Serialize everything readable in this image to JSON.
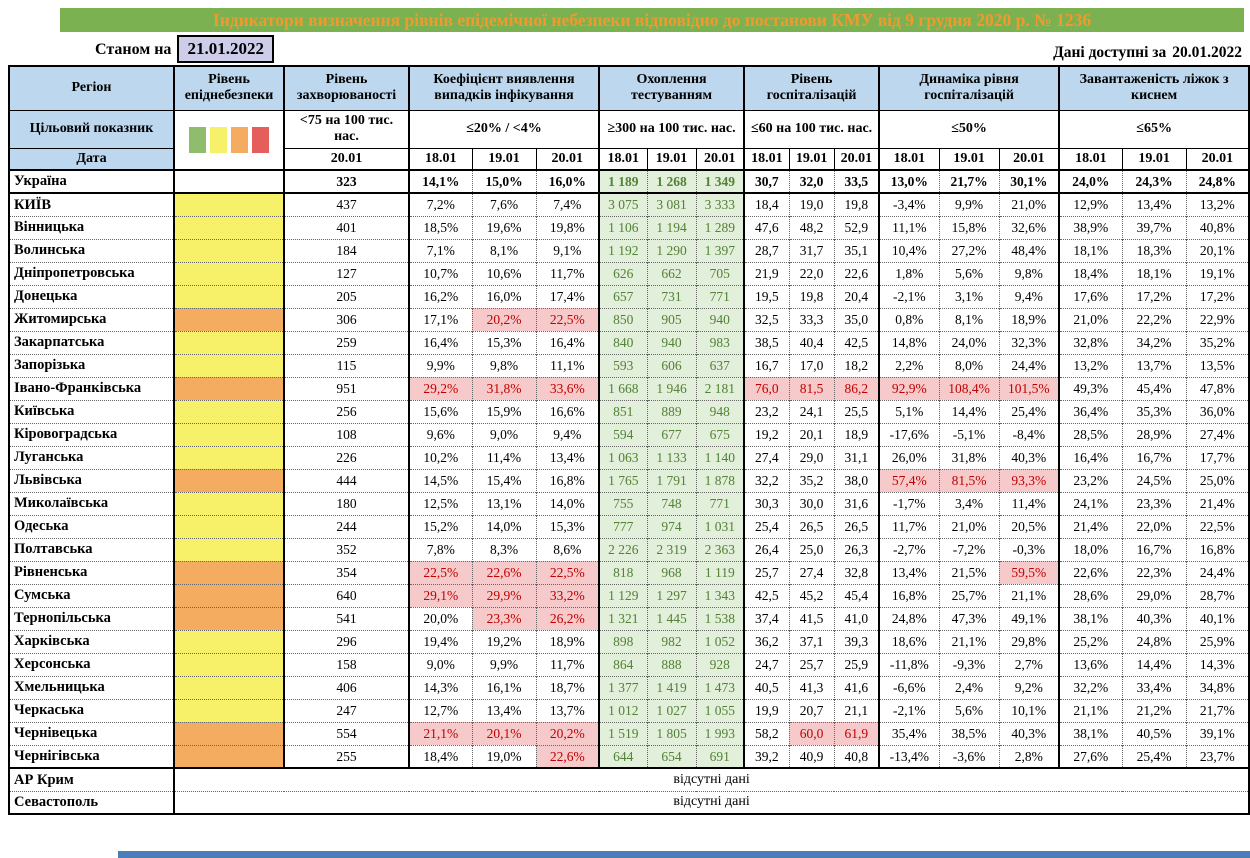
{
  "page": {
    "title": "Індикатори визначення рівнів епідемічної небезпеки відповідно до постанови КМУ від 9 грудня 2020 р. № 1236",
    "as_of_label": "Станом на",
    "as_of_date": "21.01.2022",
    "available_label": "Дані доступні за",
    "available_date": "20.01.2022"
  },
  "colors": {
    "title_bg": "#7cb152",
    "title_text": "#f09a2e",
    "header_bg": "#bdd7ee",
    "as_of_bg": "#cdcde9",
    "danger_yellow": "#f6f169",
    "danger_orange": "#f4ad60",
    "testing_bg": "#e2efda",
    "testing_text": "#538135",
    "alert_bg": "#f6caca",
    "alert_text": "#c00000",
    "bottom_strip": "#4a7ebb",
    "legend": [
      "#8fbc6d",
      "#f6f169",
      "#f4ad60",
      "#e45f5b"
    ]
  },
  "header": {
    "region": "Регіон",
    "danger": "Рівень епіднебезпеки",
    "incidence": "Рівень захворюваності",
    "detection": "Коефіцієнт виявлення випадків інфікування",
    "testing": "Охоплення тестуванням",
    "hospitalization": "Рівень госпіталізацій",
    "dynamics": "Динаміка рівня госпіталізацій",
    "beds": "Завантаженість ліжок з киснем",
    "target_label": "Цільовий показник",
    "date_label": "Дата",
    "targets": {
      "incidence": "<75 на 100 тис. нас.",
      "detection": "≤20% / <4%",
      "testing": "≥300 на 100 тис. нас.",
      "hospitalization": "≤60 на 100 тис. нас.",
      "dynamics": "≤50%",
      "beds": "≤65%"
    },
    "incidence_date": "20.01",
    "dates": [
      "18.01",
      "19.01",
      "20.01"
    ]
  },
  "no_data_text": "відсутні дані",
  "rows": [
    {
      "name": "Україна",
      "danger": null,
      "bold": true,
      "incidence": "323",
      "detection": [
        "14,1%",
        "15,0%",
        "16,0%"
      ],
      "testing": [
        "1 189",
        "1 268",
        "1 349"
      ],
      "hosp": [
        "30,7",
        "32,0",
        "33,5"
      ],
      "dynamics": [
        "13,0%",
        "21,7%",
        "30,1%"
      ],
      "beds": [
        "24,0%",
        "24,3%",
        "24,8%"
      ]
    },
    {
      "name": "КИЇВ",
      "danger": "yellow",
      "incidence": "437",
      "detection": [
        "7,2%",
        "7,6%",
        "7,4%"
      ],
      "testing": [
        "3 075",
        "3 081",
        "3 333"
      ],
      "hosp": [
        "18,4",
        "19,0",
        "19,8"
      ],
      "dynamics": [
        "-3,4%",
        "9,9%",
        "21,0%"
      ],
      "beds": [
        "12,9%",
        "13,4%",
        "13,2%"
      ]
    },
    {
      "name": "Вінницька",
      "danger": "yellow",
      "incidence": "401",
      "detection": [
        "18,5%",
        "19,6%",
        "19,8%"
      ],
      "testing": [
        "1 106",
        "1 194",
        "1 289"
      ],
      "hosp": [
        "47,6",
        "48,2",
        "52,9"
      ],
      "dynamics": [
        "11,1%",
        "15,8%",
        "32,6%"
      ],
      "beds": [
        "38,9%",
        "39,7%",
        "40,8%"
      ]
    },
    {
      "name": "Волинська",
      "danger": "yellow",
      "incidence": "184",
      "detection": [
        "7,1%",
        "8,1%",
        "9,1%"
      ],
      "testing": [
        "1 192",
        "1 290",
        "1 397"
      ],
      "hosp": [
        "28,7",
        "31,7",
        "35,1"
      ],
      "dynamics": [
        "10,4%",
        "27,2%",
        "48,4%"
      ],
      "beds": [
        "18,1%",
        "18,3%",
        "20,1%"
      ]
    },
    {
      "name": "Дніпропетровська",
      "danger": "yellow",
      "incidence": "127",
      "detection": [
        "10,7%",
        "10,6%",
        "11,7%"
      ],
      "testing": [
        "626",
        "662",
        "705"
      ],
      "hosp": [
        "21,9",
        "22,0",
        "22,6"
      ],
      "dynamics": [
        "1,8%",
        "5,6%",
        "9,8%"
      ],
      "beds": [
        "18,4%",
        "18,1%",
        "19,1%"
      ]
    },
    {
      "name": "Донецька",
      "danger": "yellow",
      "incidence": "205",
      "detection": [
        "16,2%",
        "16,0%",
        "17,4%"
      ],
      "testing": [
        "657",
        "731",
        "771"
      ],
      "hosp": [
        "19,5",
        "19,8",
        "20,4"
      ],
      "dynamics": [
        "-2,1%",
        "3,1%",
        "9,4%"
      ],
      "beds": [
        "17,6%",
        "17,2%",
        "17,2%"
      ]
    },
    {
      "name": "Житомирська",
      "danger": "orange",
      "incidence": "306",
      "detection": [
        "17,1%",
        "20,2%",
        "22,5%"
      ],
      "detection_red": [
        1,
        2
      ],
      "testing": [
        "850",
        "905",
        "940"
      ],
      "hosp": [
        "32,5",
        "33,3",
        "35,0"
      ],
      "dynamics": [
        "0,8%",
        "8,1%",
        "18,9%"
      ],
      "beds": [
        "21,0%",
        "22,2%",
        "22,9%"
      ]
    },
    {
      "name": "Закарпатська",
      "danger": "yellow",
      "incidence": "259",
      "detection": [
        "16,4%",
        "15,3%",
        "16,4%"
      ],
      "testing": [
        "840",
        "940",
        "983"
      ],
      "hosp": [
        "38,5",
        "40,4",
        "42,5"
      ],
      "dynamics": [
        "14,8%",
        "24,0%",
        "32,3%"
      ],
      "beds": [
        "32,8%",
        "34,2%",
        "35,2%"
      ]
    },
    {
      "name": "Запорізька",
      "danger": "yellow",
      "incidence": "115",
      "detection": [
        "9,9%",
        "9,8%",
        "11,1%"
      ],
      "testing": [
        "593",
        "606",
        "637"
      ],
      "hosp": [
        "16,7",
        "17,0",
        "18,2"
      ],
      "dynamics": [
        "2,2%",
        "8,0%",
        "24,4%"
      ],
      "beds": [
        "13,2%",
        "13,7%",
        "13,5%"
      ]
    },
    {
      "name": "Івано-Франківська",
      "danger": "orange",
      "incidence": "951",
      "detection": [
        "29,2%",
        "31,8%",
        "33,6%"
      ],
      "detection_red": [
        0,
        1,
        2
      ],
      "testing": [
        "1 668",
        "1 946",
        "2 181"
      ],
      "hosp": [
        "76,0",
        "81,5",
        "86,2"
      ],
      "hosp_red": [
        0,
        1,
        2
      ],
      "dynamics": [
        "92,9%",
        "108,4%",
        "101,5%"
      ],
      "dynamics_red": [
        0,
        1,
        2
      ],
      "beds": [
        "49,3%",
        "45,4%",
        "47,8%"
      ]
    },
    {
      "name": "Київська",
      "danger": "yellow",
      "incidence": "256",
      "detection": [
        "15,6%",
        "15,9%",
        "16,6%"
      ],
      "testing": [
        "851",
        "889",
        "948"
      ],
      "hosp": [
        "23,2",
        "24,1",
        "25,5"
      ],
      "dynamics": [
        "5,1%",
        "14,4%",
        "25,4%"
      ],
      "beds": [
        "36,4%",
        "35,3%",
        "36,0%"
      ]
    },
    {
      "name": "Кіровоградська",
      "danger": "yellow",
      "incidence": "108",
      "detection": [
        "9,6%",
        "9,0%",
        "9,4%"
      ],
      "testing": [
        "594",
        "677",
        "675"
      ],
      "hosp": [
        "19,2",
        "20,1",
        "18,9"
      ],
      "dynamics": [
        "-17,6%",
        "-5,1%",
        "-8,4%"
      ],
      "beds": [
        "28,5%",
        "28,9%",
        "27,4%"
      ]
    },
    {
      "name": "Луганська",
      "danger": "yellow",
      "incidence": "226",
      "detection": [
        "10,2%",
        "11,4%",
        "13,4%"
      ],
      "testing": [
        "1 063",
        "1 133",
        "1 140"
      ],
      "hosp": [
        "27,4",
        "29,0",
        "31,1"
      ],
      "dynamics": [
        "26,0%",
        "31,8%",
        "40,3%"
      ],
      "beds": [
        "16,4%",
        "16,7%",
        "17,7%"
      ]
    },
    {
      "name": "Львівська",
      "danger": "orange",
      "incidence": "444",
      "detection": [
        "14,5%",
        "15,4%",
        "16,8%"
      ],
      "testing": [
        "1 765",
        "1 791",
        "1 878"
      ],
      "hosp": [
        "32,2",
        "35,2",
        "38,0"
      ],
      "dynamics": [
        "57,4%",
        "81,5%",
        "93,3%"
      ],
      "dynamics_red": [
        0,
        1,
        2
      ],
      "beds": [
        "23,2%",
        "24,5%",
        "25,0%"
      ]
    },
    {
      "name": "Миколаївська",
      "danger": "yellow",
      "incidence": "180",
      "detection": [
        "12,5%",
        "13,1%",
        "14,0%"
      ],
      "testing": [
        "755",
        "748",
        "771"
      ],
      "hosp": [
        "30,3",
        "30,0",
        "31,6"
      ],
      "dynamics": [
        "-1,7%",
        "3,4%",
        "11,4%"
      ],
      "beds": [
        "24,1%",
        "23,3%",
        "21,4%"
      ]
    },
    {
      "name": "Одеська",
      "danger": "yellow",
      "incidence": "244",
      "detection": [
        "15,2%",
        "14,0%",
        "15,3%"
      ],
      "testing": [
        "777",
        "974",
        "1 031"
      ],
      "hosp": [
        "25,4",
        "26,5",
        "26,5"
      ],
      "dynamics": [
        "11,7%",
        "21,0%",
        "20,5%"
      ],
      "beds": [
        "21,4%",
        "22,0%",
        "22,5%"
      ]
    },
    {
      "name": "Полтавська",
      "danger": "yellow",
      "incidence": "352",
      "detection": [
        "7,8%",
        "8,3%",
        "8,6%"
      ],
      "testing": [
        "2 226",
        "2 319",
        "2 363"
      ],
      "hosp": [
        "26,4",
        "25,0",
        "26,3"
      ],
      "dynamics": [
        "-2,7%",
        "-7,2%",
        "-0,3%"
      ],
      "beds": [
        "18,0%",
        "16,7%",
        "16,8%"
      ]
    },
    {
      "name": "Рівненська",
      "danger": "orange",
      "incidence": "354",
      "detection": [
        "22,5%",
        "22,6%",
        "22,5%"
      ],
      "detection_red": [
        0,
        1,
        2
      ],
      "testing": [
        "818",
        "968",
        "1 119"
      ],
      "hosp": [
        "25,7",
        "27,4",
        "32,8"
      ],
      "dynamics": [
        "13,4%",
        "21,5%",
        "59,5%"
      ],
      "dynamics_red": [
        2
      ],
      "beds": [
        "22,6%",
        "22,3%",
        "24,4%"
      ]
    },
    {
      "name": "Сумська",
      "danger": "orange",
      "incidence": "640",
      "detection": [
        "29,1%",
        "29,9%",
        "33,2%"
      ],
      "detection_red": [
        0,
        1,
        2
      ],
      "testing": [
        "1 129",
        "1 297",
        "1 343"
      ],
      "hosp": [
        "42,5",
        "45,2",
        "45,4"
      ],
      "dynamics": [
        "16,8%",
        "25,7%",
        "21,1%"
      ],
      "beds": [
        "28,6%",
        "29,0%",
        "28,7%"
      ]
    },
    {
      "name": "Тернопільська",
      "danger": "orange",
      "incidence": "541",
      "detection": [
        "20,0%",
        "23,3%",
        "26,2%"
      ],
      "detection_red": [
        1,
        2
      ],
      "testing": [
        "1 321",
        "1 445",
        "1 538"
      ],
      "hosp": [
        "37,4",
        "41,5",
        "41,0"
      ],
      "dynamics": [
        "24,8%",
        "47,3%",
        "49,1%"
      ],
      "beds": [
        "38,1%",
        "40,3%",
        "40,1%"
      ]
    },
    {
      "name": "Харківська",
      "danger": "yellow",
      "incidence": "296",
      "detection": [
        "19,4%",
        "19,2%",
        "18,9%"
      ],
      "testing": [
        "898",
        "982",
        "1 052"
      ],
      "hosp": [
        "36,2",
        "37,1",
        "39,3"
      ],
      "dynamics": [
        "18,6%",
        "21,1%",
        "29,8%"
      ],
      "beds": [
        "25,2%",
        "24,8%",
        "25,9%"
      ]
    },
    {
      "name": "Херсонська",
      "danger": "yellow",
      "incidence": "158",
      "detection": [
        "9,0%",
        "9,9%",
        "11,7%"
      ],
      "testing": [
        "864",
        "888",
        "928"
      ],
      "hosp": [
        "24,7",
        "25,7",
        "25,9"
      ],
      "dynamics": [
        "-11,8%",
        "-9,3%",
        "2,7%"
      ],
      "beds": [
        "13,6%",
        "14,4%",
        "14,3%"
      ]
    },
    {
      "name": "Хмельницька",
      "danger": "yellow",
      "incidence": "406",
      "detection": [
        "14,3%",
        "16,1%",
        "18,7%"
      ],
      "testing": [
        "1 377",
        "1 419",
        "1 473"
      ],
      "hosp": [
        "40,5",
        "41,3",
        "41,6"
      ],
      "dynamics": [
        "-6,6%",
        "2,4%",
        "9,2%"
      ],
      "beds": [
        "32,2%",
        "33,4%",
        "34,8%"
      ]
    },
    {
      "name": "Черкаська",
      "danger": "yellow",
      "incidence": "247",
      "detection": [
        "12,7%",
        "13,4%",
        "13,7%"
      ],
      "testing": [
        "1 012",
        "1 027",
        "1 055"
      ],
      "hosp": [
        "19,9",
        "20,7",
        "21,1"
      ],
      "dynamics": [
        "-2,1%",
        "5,6%",
        "10,1%"
      ],
      "beds": [
        "21,1%",
        "21,2%",
        "21,7%"
      ]
    },
    {
      "name": "Чернівецька",
      "danger": "orange",
      "incidence": "554",
      "detection": [
        "21,1%",
        "20,1%",
        "20,2%"
      ],
      "detection_red": [
        0,
        1,
        2
      ],
      "testing": [
        "1 519",
        "1 805",
        "1 993"
      ],
      "hosp": [
        "58,2",
        "60,0",
        "61,9"
      ],
      "hosp_red": [
        1,
        2
      ],
      "dynamics": [
        "35,4%",
        "38,5%",
        "40,3%"
      ],
      "beds": [
        "38,1%",
        "40,5%",
        "39,1%"
      ]
    },
    {
      "name": "Чернігівська",
      "danger": "orange",
      "incidence": "255",
      "detection": [
        "18,4%",
        "19,0%",
        "22,6%"
      ],
      "detection_red": [
        2
      ],
      "testing": [
        "644",
        "654",
        "691"
      ],
      "hosp": [
        "39,2",
        "40,9",
        "40,8"
      ],
      "dynamics": [
        "-13,4%",
        "-3,6%",
        "2,8%"
      ],
      "beds": [
        "27,6%",
        "25,4%",
        "23,7%"
      ]
    },
    {
      "name": "АР Крим",
      "no_data": true
    },
    {
      "name": "Севастополь",
      "no_data": true
    }
  ]
}
